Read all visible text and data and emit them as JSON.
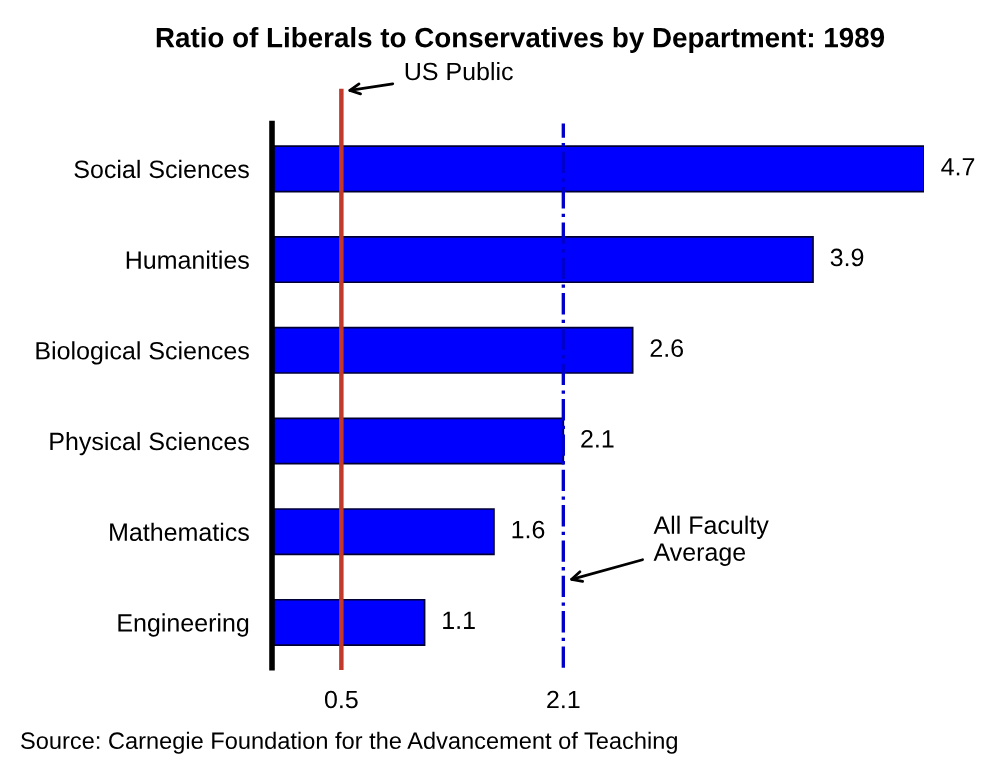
{
  "chart_data": {
    "type": "bar",
    "orientation": "horizontal",
    "title": "Ratio of Liberals to Conservatives by Department: 1989",
    "categories": [
      "Social Sciences",
      "Humanities",
      "Biological Sciences",
      "Physical Sciences",
      "Mathematics",
      "Engineering"
    ],
    "values": [
      4.7,
      3.9,
      2.6,
      2.1,
      1.6,
      1.1
    ],
    "color": "#0000ff",
    "data_labels": true,
    "xlim": [
      0,
      4.7
    ],
    "xticks": [
      0.5,
      2.1
    ],
    "grid": false,
    "legend": false,
    "ref_lines": [
      {
        "axis": "x",
        "value": 0.5,
        "label": "US Public",
        "color": "#c0392b",
        "line_style": "solid"
      },
      {
        "axis": "x",
        "value": 2.1,
        "label": "All Faculty\nAverage",
        "color": "#0000cc",
        "line_style": "dashdot"
      }
    ],
    "annotations": [
      "Source: Carnegie Foundation for the Advancement of Teaching"
    ]
  }
}
